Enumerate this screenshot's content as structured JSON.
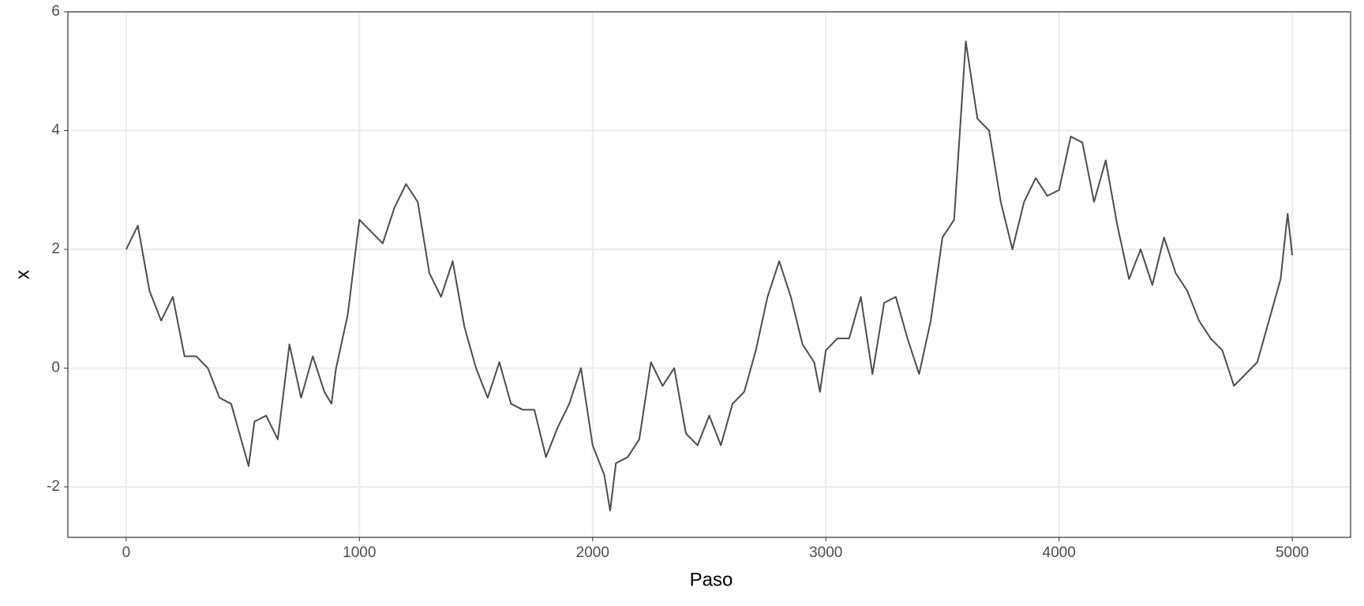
{
  "chart_data": {
    "type": "line",
    "x_label": "Paso",
    "y_label": "x",
    "x": [
      0,
      50,
      100,
      150,
      200,
      250,
      300,
      350,
      400,
      450,
      500,
      525,
      550,
      600,
      650,
      700,
      750,
      800,
      850,
      880,
      900,
      950,
      1000,
      1050,
      1100,
      1150,
      1200,
      1250,
      1300,
      1350,
      1400,
      1450,
      1500,
      1550,
      1600,
      1650,
      1700,
      1750,
      1800,
      1850,
      1900,
      1950,
      2000,
      2050,
      2075,
      2100,
      2150,
      2200,
      2250,
      2300,
      2350,
      2400,
      2450,
      2500,
      2550,
      2600,
      2650,
      2700,
      2750,
      2800,
      2850,
      2900,
      2950,
      2975,
      3000,
      3050,
      3100,
      3150,
      3200,
      3250,
      3300,
      3350,
      3400,
      3450,
      3500,
      3550,
      3600,
      3650,
      3700,
      3750,
      3800,
      3850,
      3900,
      3950,
      4000,
      4050,
      4100,
      4150,
      4200,
      4250,
      4300,
      4350,
      4400,
      4450,
      4500,
      4550,
      4600,
      4650,
      4700,
      4750,
      4800,
      4850,
      4900,
      4950,
      4980,
      5000
    ],
    "values": [
      2.0,
      2.4,
      1.3,
      0.8,
      1.2,
      0.2,
      0.2,
      0.0,
      -0.5,
      -0.6,
      -1.3,
      -1.65,
      -0.9,
      -0.8,
      -1.2,
      0.4,
      -0.5,
      0.2,
      -0.4,
      -0.6,
      0.0,
      0.9,
      2.5,
      2.3,
      2.1,
      2.7,
      3.1,
      2.8,
      1.6,
      1.2,
      1.8,
      0.7,
      0.0,
      -0.5,
      0.1,
      -0.6,
      -0.7,
      -0.7,
      -1.5,
      -1.0,
      -0.6,
      0.0,
      -1.3,
      -1.8,
      -2.4,
      -1.6,
      -1.5,
      -1.2,
      0.1,
      -0.3,
      0.0,
      -1.1,
      -1.3,
      -0.8,
      -1.3,
      -0.6,
      -0.4,
      0.3,
      1.2,
      1.8,
      1.2,
      0.4,
      0.1,
      -0.4,
      0.3,
      0.5,
      0.5,
      1.2,
      -0.1,
      1.1,
      1.2,
      0.5,
      -0.1,
      0.8,
      2.2,
      2.5,
      5.5,
      4.2,
      4.0,
      2.8,
      2.0,
      2.8,
      3.2,
      2.9,
      3.0,
      3.9,
      3.8,
      2.8,
      3.5,
      2.4,
      1.5,
      2.0,
      1.4,
      2.2,
      1.6,
      1.3,
      0.8,
      0.5,
      0.3,
      -0.3,
      -0.1,
      0.1,
      0.8,
      1.5,
      2.6,
      1.9
    ],
    "color": "#4d4d4d",
    "xlim": [
      -250,
      5250
    ],
    "ylim": [
      -2.85,
      6.0
    ],
    "xticks": [
      0,
      1000,
      2000,
      3000,
      4000,
      5000
    ],
    "yticks": [
      -2,
      0,
      2,
      4,
      6
    ],
    "grid": true
  }
}
